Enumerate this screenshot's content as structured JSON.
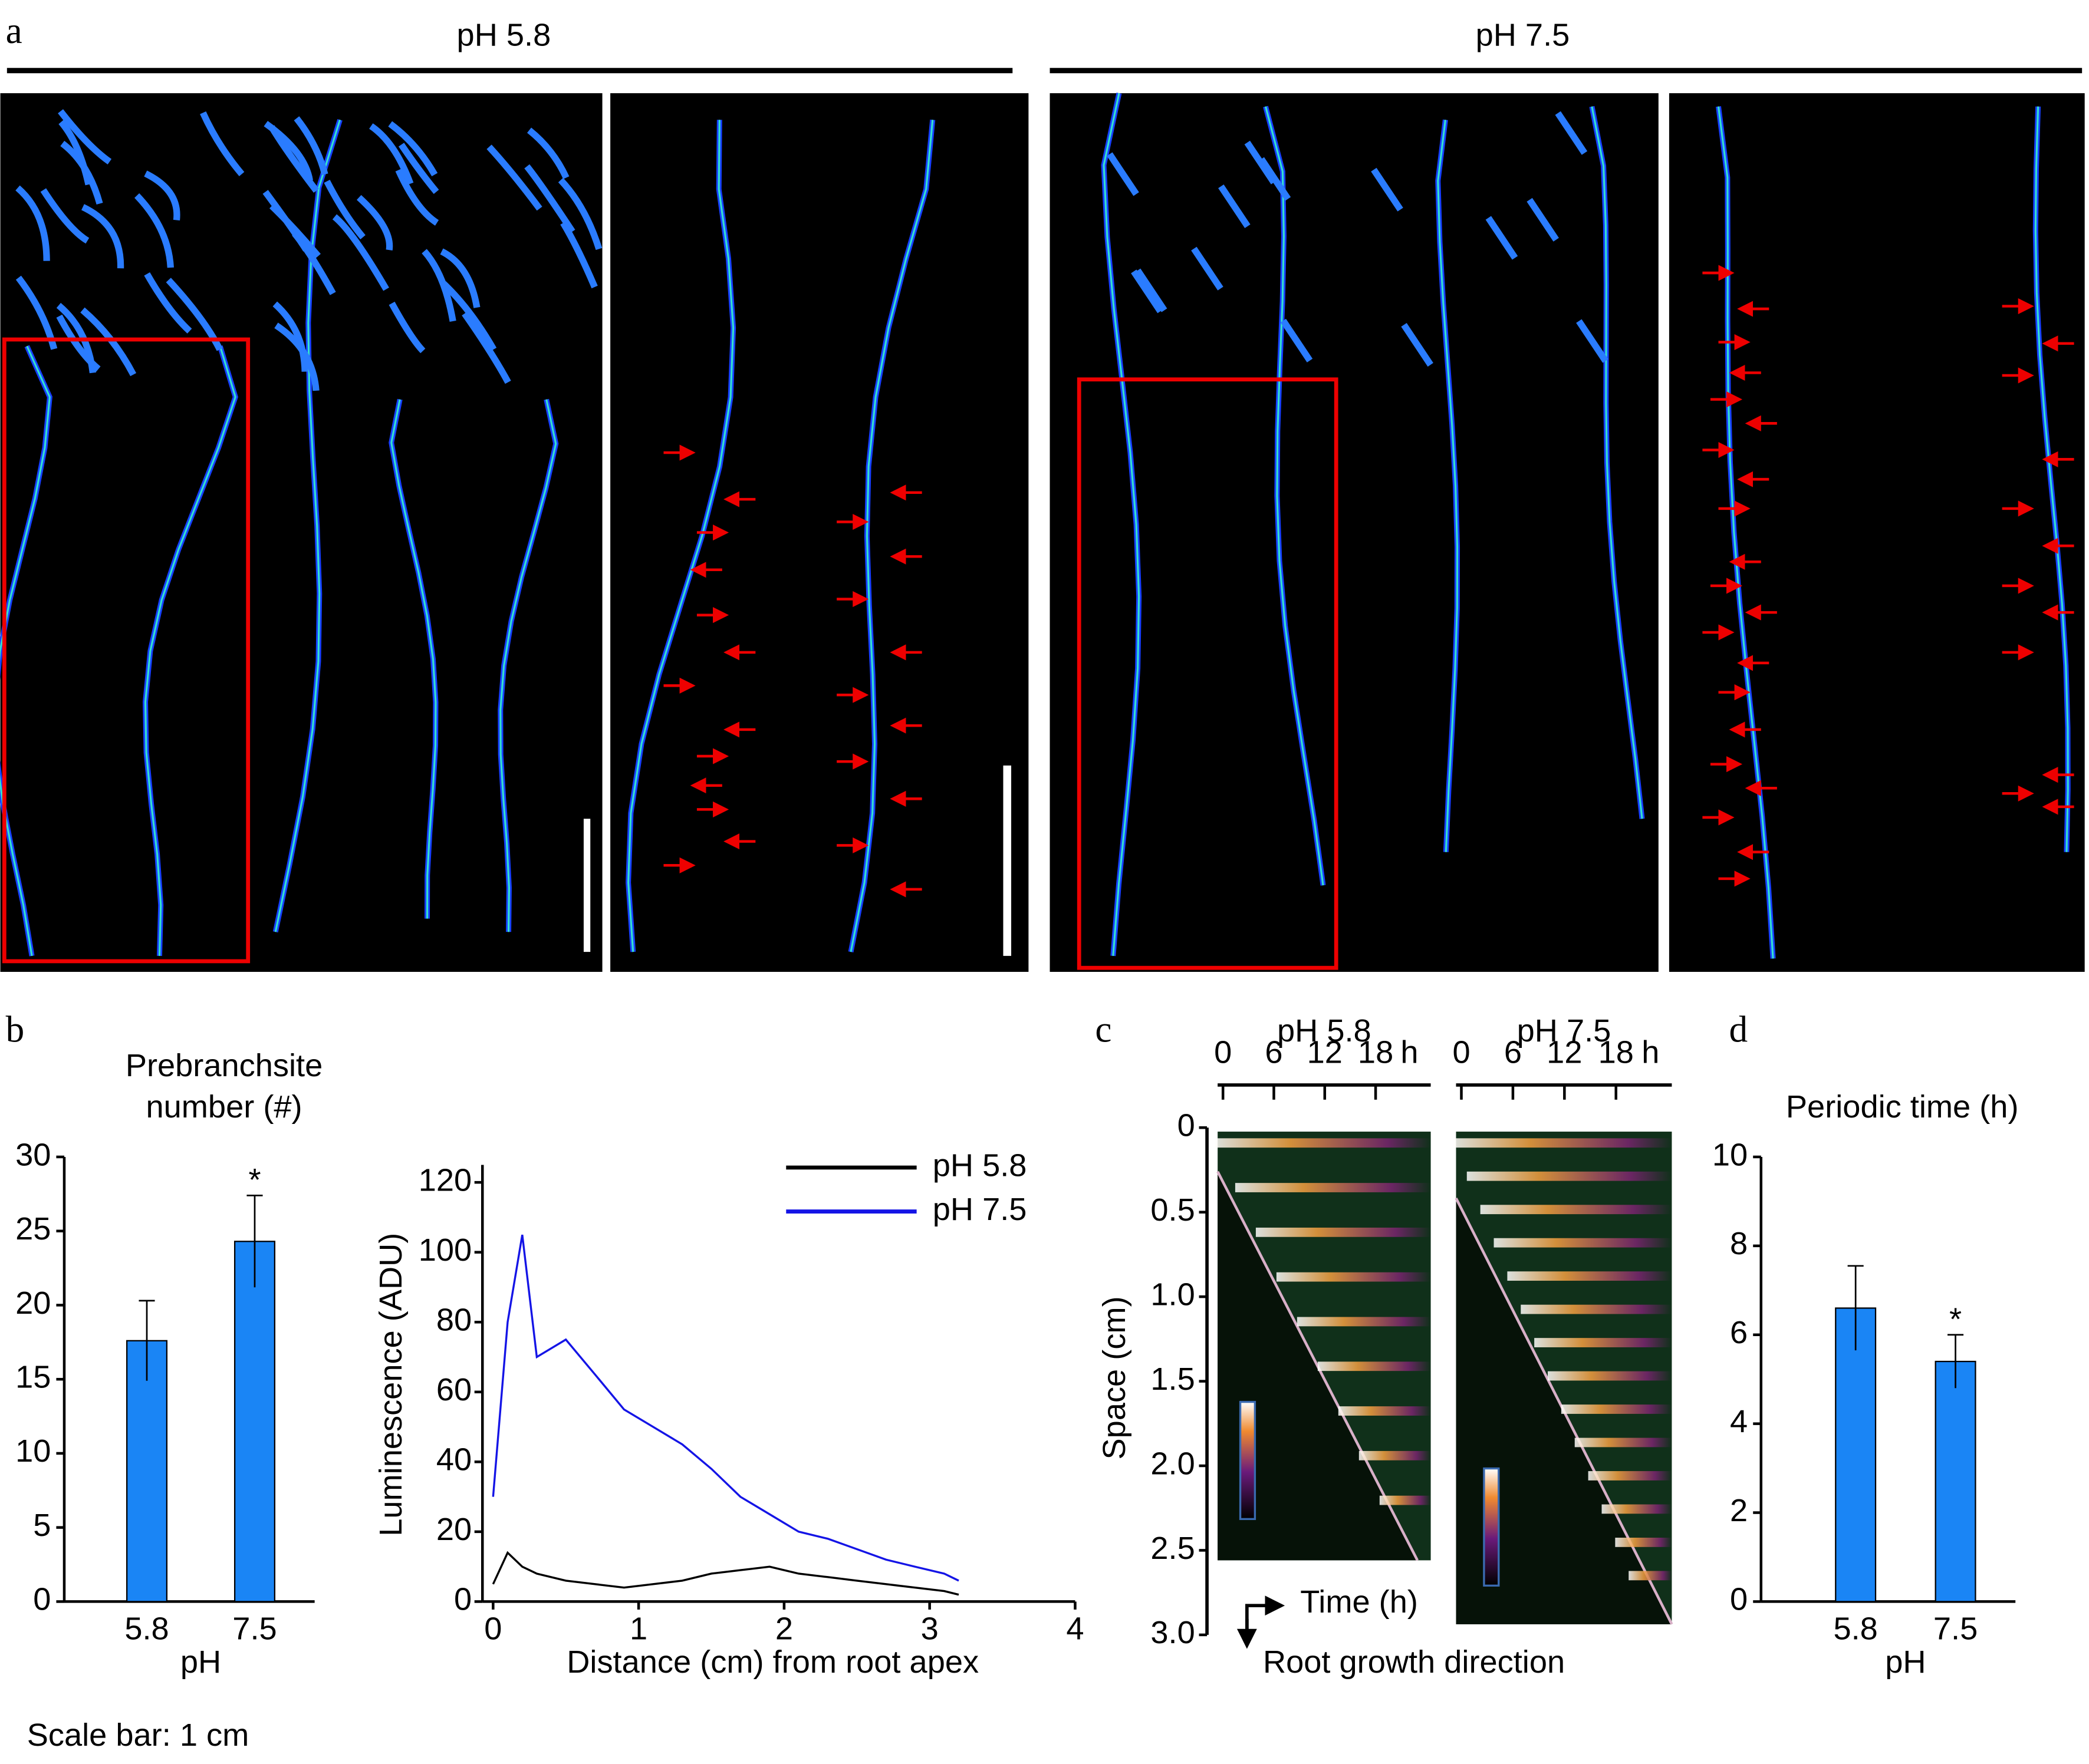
{
  "figure": {
    "panel_a": {
      "label": "a",
      "groups": [
        "pH 5.8",
        "pH 7.5"
      ]
    },
    "scale_note": "Scale bar: 1 cm"
  },
  "chart_data": [
    {
      "type": "bar",
      "panel": "b",
      "title": [
        "Prebranchsite",
        "number (#)"
      ],
      "xlabel": "pH",
      "categories": [
        "5.8",
        "7.5"
      ],
      "values": [
        17.6,
        24.3
      ],
      "errors": [
        2.7,
        3.1
      ],
      "color": "#1a85f5",
      "annotation": "*",
      "ylim": [
        0,
        30
      ],
      "yticks": [
        0,
        5,
        10,
        15,
        20,
        25,
        30
      ]
    },
    {
      "type": "line",
      "xlabel": "Distance (cm) from root apex",
      "ylabel": "Luminescence (ADU)",
      "x": [
        0,
        0.1,
        0.2,
        0.3,
        0.5,
        0.7,
        0.9,
        1.1,
        1.3,
        1.5,
        1.7,
        1.9,
        2.1,
        2.3,
        2.5,
        2.7,
        2.9,
        3.1,
        3.2
      ],
      "series": [
        {
          "name": "pH 5.8",
          "color": "#000000",
          "values": [
            5,
            14,
            10,
            8,
            6,
            5,
            4,
            5,
            6,
            8,
            9,
            10,
            8,
            7,
            6,
            5,
            4,
            3,
            2
          ]
        },
        {
          "name": "pH 7.5",
          "color": "#1414e6",
          "values": [
            30,
            80,
            105,
            70,
            75,
            65,
            55,
            50,
            45,
            38,
            30,
            25,
            20,
            18,
            15,
            12,
            10,
            8,
            6
          ]
        }
      ],
      "xlim": [
        0,
        4
      ],
      "xticks": [
        0,
        1,
        2,
        3,
        4
      ],
      "ylim": [
        0,
        125
      ],
      "yticks": [
        0,
        20,
        40,
        60,
        80,
        100,
        120
      ],
      "legend": "upper right"
    },
    {
      "type": "kymograph",
      "panel": "c",
      "titles": [
        "pH 5.8",
        "pH 7.5"
      ],
      "xlabel": "Time (h)",
      "x_unit": "h",
      "ylabel": "Space (cm)",
      "annotation": "Root growth direction",
      "xlim": [
        0,
        24.5
      ],
      "xticks": [
        0,
        6,
        12,
        18
      ],
      "ylim": [
        0,
        3
      ],
      "yticks": [
        0,
        0.5,
        {
          "value": 1,
          "label": "1.0"
        },
        1.5,
        {
          "value": 2,
          "label": "2.0"
        },
        2.5,
        {
          "value": 3,
          "label": "3.0"
        }
      ]
    },
    {
      "type": "bar",
      "panel": "d",
      "title": [
        "Periodic time (h)"
      ],
      "xlabel": "pH",
      "categories": [
        "5.8",
        "7.5"
      ],
      "values": [
        6.6,
        5.4
      ],
      "errors": [
        0.95,
        0.6
      ],
      "color": "#1a85f5",
      "annotation": "*",
      "ylim": [
        0,
        10
      ],
      "yticks": [
        0,
        2,
        4,
        6,
        8,
        10
      ]
    }
  ]
}
